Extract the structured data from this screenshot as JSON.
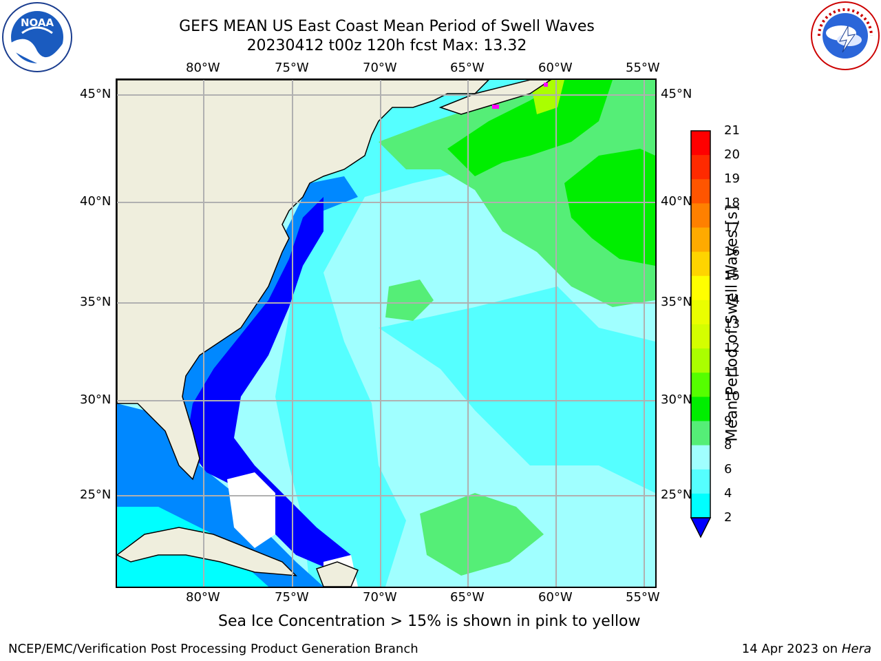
{
  "header": {
    "title_line1": "GEFS MEAN US East Coast Mean Period of Swell Waves",
    "title_line2": "20230412 t00z 120h fcst   Max: 13.32"
  },
  "logos": {
    "left": "noaa-logo",
    "left_text": "NOAA",
    "left_ring": "NATIONAL OCEANIC AND ATMOSPHERIC ADMINISTRATION • U.S. DEPARTMENT OF COMMERCE",
    "right": "nws-logo",
    "right_ring": "NATIONAL WEATHER SERVICE"
  },
  "map": {
    "lon_ticks": [
      "80°W",
      "75°W",
      "70°W",
      "65°W",
      "60°W",
      "55°W"
    ],
    "lat_ticks": [
      "45°N",
      "40°N",
      "35°N",
      "30°N",
      "25°N"
    ],
    "colors": {
      "land": "#efeedd",
      "ice_free_white": "#ffffff",
      "grid": "#b0b0b0"
    }
  },
  "colorbar": {
    "label": "Mean Period of Swell Waves [s]",
    "ticks": [
      "21",
      "20",
      "19",
      "18",
      "17",
      "16",
      "15",
      "14",
      "13",
      "12",
      "11",
      "10",
      "9",
      "8",
      "6",
      "4",
      "2"
    ],
    "colors": [
      "#ff0000",
      "#ff2a00",
      "#ff5500",
      "#ff8000",
      "#ffaa00",
      "#ffd400",
      "#ffff00",
      "#eaff00",
      "#d4ff00",
      "#aaff00",
      "#55ff00",
      "#00ee00",
      "#55ee77",
      "#a0ffff",
      "#55ffff",
      "#00ffff",
      "#0088ff",
      "#0000ff"
    ]
  },
  "notes": {
    "sea_ice": "Sea Ice Concentration > 15% is shown in pink to yellow"
  },
  "footer": {
    "left": "NCEP/EMC/Verification Post Processing Product Generation Branch",
    "right_date": "14 Apr 2023 on ",
    "right_machine": "Hera"
  }
}
